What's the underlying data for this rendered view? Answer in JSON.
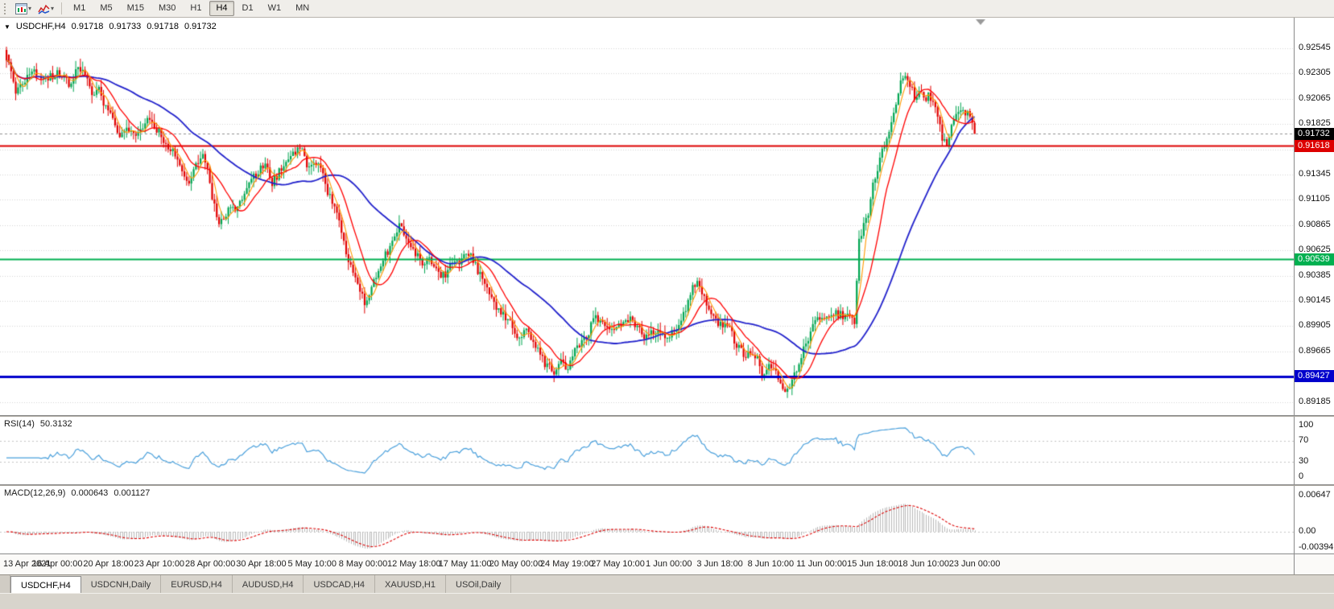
{
  "toolbar": {
    "timeframes": [
      "M1",
      "M5",
      "M15",
      "M30",
      "H1",
      "H4",
      "D1",
      "W1",
      "MN"
    ],
    "active_timeframe": "H4",
    "icons": [
      "chart-window-icon",
      "indicator-style-icon"
    ]
  },
  "chart_header": {
    "collapse_icon": "▼",
    "symbol": "USDCHF,H4",
    "open": "0.91718",
    "high": "0.91733",
    "low": "0.91718",
    "close": "0.91732"
  },
  "price_axis": {
    "labels": [
      "0.92545",
      "0.92305",
      "0.92065",
      "0.91825",
      "0.91585",
      "0.91345",
      "0.91105",
      "0.90865",
      "0.90625",
      "0.90385",
      "0.90145",
      "0.89905",
      "0.89665",
      "0.89425",
      "0.89185"
    ],
    "top_price": 0.92545,
    "step": 0.0024
  },
  "badges": {
    "red": {
      "text": "0.91618",
      "price": 0.91618,
      "bg": "#dd0000"
    },
    "green": {
      "text": "0.90539",
      "price": 0.90539,
      "bg": "#00b050"
    },
    "blue": {
      "text": "0.89427",
      "price": 0.89427,
      "bg": "#0000cc"
    },
    "current": {
      "text": "0.91732",
      "price": 0.91732,
      "bg": "#000000"
    }
  },
  "hlines": [
    {
      "price": 0.91732,
      "color": "#909090",
      "width": 1,
      "style": "dash"
    },
    {
      "price": 0.91618,
      "color": "#dd0000",
      "width": 2,
      "style": "solid"
    },
    {
      "price": 0.90539,
      "color": "#00b050",
      "width": 2,
      "style": "solid"
    },
    {
      "price": 0.89427,
      "color": "#0000cc",
      "width": 3,
      "style": "solid"
    }
  ],
  "time_axis": {
    "labels": [
      "13 Apr 2021",
      "16 Apr 00:00",
      "20 Apr 18:00",
      "23 Apr 10:00",
      "28 Apr 00:00",
      "30 Apr 18:00",
      "5 May 10:00",
      "8 May 00:00",
      "12 May 18:00",
      "17 May 11:00",
      "20 May 00:00",
      "24 May 19:00",
      "27 May 10:00",
      "1 Jun 00:00",
      "3 Jun 18:00",
      "8 Jun 10:00",
      "11 Jun 00:00",
      "15 Jun 18:00",
      "18 Jun 10:00",
      "23 Jun 00:00"
    ]
  },
  "rsi_panel": {
    "label": "RSI(14)",
    "value": "50.3132",
    "levels": [
      {
        "text": "100",
        "v": 100
      },
      {
        "text": "70",
        "v": 70
      },
      {
        "text": "30",
        "v": 30
      },
      {
        "text": "0",
        "v": 0
      }
    ],
    "line_color": "#4aa0dc"
  },
  "macd_panel": {
    "label": "MACD(12,26,9)",
    "value_main": "0.000643",
    "value_signal": "0.001127",
    "axis": [
      {
        "text": "0.00647",
        "v": 0.00647
      },
      {
        "text": "0.00",
        "v": 0
      },
      {
        "text": "-0.00394",
        "v": -0.00394
      }
    ],
    "hist_color": "#b9b9b9",
    "signal_color": "#dd0000"
  },
  "tabs": {
    "items": [
      "USDCHF,H4",
      "USDCNH,Daily",
      "EURUSD,H4",
      "AUDUSD,H4",
      "USDCAD,H4",
      "XAUUSD,H1",
      "USOil,Daily"
    ],
    "active": "USDCHF,H4"
  },
  "chart_data": {
    "type": "candlestick",
    "symbol": "USDCHF",
    "timeframe": "H4",
    "n_candles": 420,
    "price_range": [
      0.89185,
      0.92545
    ],
    "current_bar": {
      "open": 0.91718,
      "high": 0.91733,
      "low": 0.91718,
      "close": 0.91732
    },
    "up_color": "#00a651",
    "down_color": "#e10000",
    "body_noise": 0.0009,
    "wick_noise": 0.0008,
    "ma": [
      {
        "period": 45,
        "color": "#2222cc",
        "width": 1.8
      },
      {
        "period": 13,
        "color": "#ff0000",
        "width": 1.3
      },
      {
        "period": 5,
        "color": "#ff9900",
        "width": 1.1
      }
    ],
    "waypoints": [
      [
        0,
        0.925
      ],
      [
        2,
        0.9232
      ],
      [
        4,
        0.9212
      ],
      [
        8,
        0.9226
      ],
      [
        12,
        0.9233
      ],
      [
        18,
        0.9227
      ],
      [
        23,
        0.9231
      ],
      [
        27,
        0.9221
      ],
      [
        31,
        0.9235
      ],
      [
        34,
        0.9227
      ],
      [
        37,
        0.921
      ],
      [
        40,
        0.9214
      ],
      [
        43,
        0.9196
      ],
      [
        46,
        0.9186
      ],
      [
        49,
        0.9166
      ],
      [
        52,
        0.918
      ],
      [
        56,
        0.9174
      ],
      [
        62,
        0.9188
      ],
      [
        65,
        0.9178
      ],
      [
        68,
        0.9168
      ],
      [
        71,
        0.9158
      ],
      [
        74,
        0.9148
      ],
      [
        77,
        0.9132
      ],
      [
        79,
        0.9125
      ],
      [
        82,
        0.9142
      ],
      [
        85,
        0.915
      ],
      [
        87,
        0.9138
      ],
      [
        89,
        0.9115
      ],
      [
        91,
        0.9092
      ],
      [
        94,
        0.9088
      ],
      [
        97,
        0.9105
      ],
      [
        100,
        0.9102
      ],
      [
        103,
        0.9112
      ],
      [
        106,
        0.9128
      ],
      [
        109,
        0.9138
      ],
      [
        112,
        0.9146
      ],
      [
        115,
        0.9128
      ],
      [
        118,
        0.9136
      ],
      [
        121,
        0.9148
      ],
      [
        124,
        0.9152
      ],
      [
        127,
        0.9161
      ],
      [
        129,
        0.915
      ],
      [
        131,
        0.914
      ],
      [
        134,
        0.9146
      ],
      [
        137,
        0.9132
      ],
      [
        139,
        0.9118
      ],
      [
        141,
        0.9105
      ],
      [
        143,
        0.9098
      ],
      [
        145,
        0.9076
      ],
      [
        147,
        0.906
      ],
      [
        149,
        0.9048
      ],
      [
        151,
        0.9035
      ],
      [
        153,
        0.9022
      ],
      [
        155,
        0.9012
      ],
      [
        157,
        0.9022
      ],
      [
        159,
        0.9035
      ],
      [
        161,
        0.9045
      ],
      [
        164,
        0.9058
      ],
      [
        167,
        0.9072
      ],
      [
        170,
        0.9088
      ],
      [
        172,
        0.908
      ],
      [
        174,
        0.9068
      ],
      [
        177,
        0.906
      ],
      [
        180,
        0.9048
      ],
      [
        183,
        0.9052
      ],
      [
        186,
        0.9044
      ],
      [
        189,
        0.9038
      ],
      [
        192,
        0.9046
      ],
      [
        195,
        0.9052
      ],
      [
        198,
        0.9055
      ],
      [
        201,
        0.906
      ],
      [
        204,
        0.9042
      ],
      [
        207,
        0.9034
      ],
      [
        210,
        0.9016
      ],
      [
        213,
        0.9005
      ],
      [
        216,
        0.8998
      ],
      [
        219,
        0.899
      ],
      [
        222,
        0.8976
      ],
      [
        225,
        0.8986
      ],
      [
        228,
        0.8978
      ],
      [
        231,
        0.8964
      ],
      [
        234,
        0.8952
      ],
      [
        237,
        0.8948
      ],
      [
        240,
        0.8956
      ],
      [
        243,
        0.895
      ],
      [
        246,
        0.8968
      ],
      [
        249,
        0.8976
      ],
      [
        252,
        0.8986
      ],
      [
        255,
        0.8998
      ],
      [
        258,
        0.8996
      ],
      [
        261,
        0.899
      ],
      [
        264,
        0.8988
      ],
      [
        267,
        0.8994
      ],
      [
        270,
        0.8998
      ],
      [
        273,
        0.8992
      ],
      [
        276,
        0.898
      ],
      [
        279,
        0.8986
      ],
      [
        282,
        0.8982
      ],
      [
        285,
        0.898
      ],
      [
        288,
        0.8983
      ],
      [
        291,
        0.899
      ],
      [
        294,
        0.9005
      ],
      [
        297,
        0.9028
      ],
      [
        299,
        0.9032
      ],
      [
        301,
        0.9022
      ],
      [
        304,
        0.9002
      ],
      [
        307,
        0.8995
      ],
      [
        310,
        0.899
      ],
      [
        313,
        0.8988
      ],
      [
        316,
        0.8972
      ],
      [
        319,
        0.8965
      ],
      [
        322,
        0.8962
      ],
      [
        325,
        0.8958
      ],
      [
        327,
        0.8942
      ],
      [
        330,
        0.8952
      ],
      [
        333,
        0.8948
      ],
      [
        335,
        0.8935
      ],
      [
        338,
        0.893
      ],
      [
        341,
        0.8945
      ],
      [
        344,
        0.8962
      ],
      [
        347,
        0.898
      ],
      [
        350,
        0.8994
      ],
      [
        353,
        0.9
      ],
      [
        356,
        0.8997
      ],
      [
        359,
        0.9004
      ],
      [
        362,
        0.8999
      ],
      [
        365,
        0.9002
      ],
      [
        367,
        0.8995
      ],
      [
        369,
        0.9075
      ],
      [
        371,
        0.9085
      ],
      [
        373,
        0.91
      ],
      [
        375,
        0.9125
      ],
      [
        377,
        0.914
      ],
      [
        379,
        0.9155
      ],
      [
        381,
        0.917
      ],
      [
        383,
        0.9185
      ],
      [
        385,
        0.9205
      ],
      [
        387,
        0.9222
      ],
      [
        389,
        0.923
      ],
      [
        391,
        0.9218
      ],
      [
        393,
        0.9208
      ],
      [
        395,
        0.9215
      ],
      [
        397,
        0.9205
      ],
      [
        399,
        0.921
      ],
      [
        401,
        0.92
      ],
      [
        403,
        0.9192
      ],
      [
        405,
        0.917
      ],
      [
        407,
        0.9162
      ],
      [
        409,
        0.9178
      ],
      [
        411,
        0.919
      ],
      [
        413,
        0.9196
      ],
      [
        415,
        0.9192
      ],
      [
        417,
        0.919
      ],
      [
        419,
        0.91732
      ]
    ]
  }
}
